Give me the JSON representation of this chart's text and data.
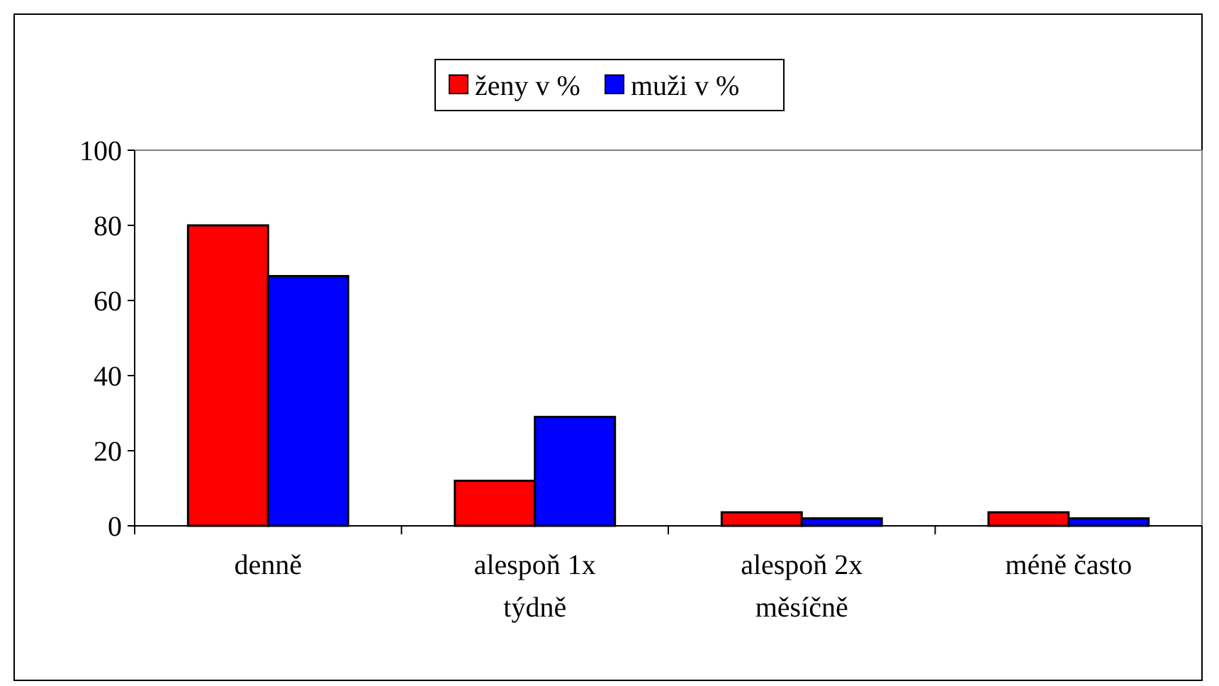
{
  "chart_data": {
    "type": "bar",
    "categories": [
      "denně",
      "alespoň 1x týdně",
      "alespoň 2x měsíčně",
      "méně často"
    ],
    "series": [
      {
        "name": "ženy v %",
        "color": "#ff0000",
        "values": [
          80,
          12,
          3.6,
          3.6
        ]
      },
      {
        "name": "muži v %",
        "color": "#0000ff",
        "values": [
          66.5,
          29,
          2,
          2
        ]
      }
    ],
    "ylim": [
      0,
      100
    ],
    "yticks": [
      0,
      20,
      40,
      60,
      80,
      100
    ],
    "grid": false,
    "legend": "top"
  }
}
